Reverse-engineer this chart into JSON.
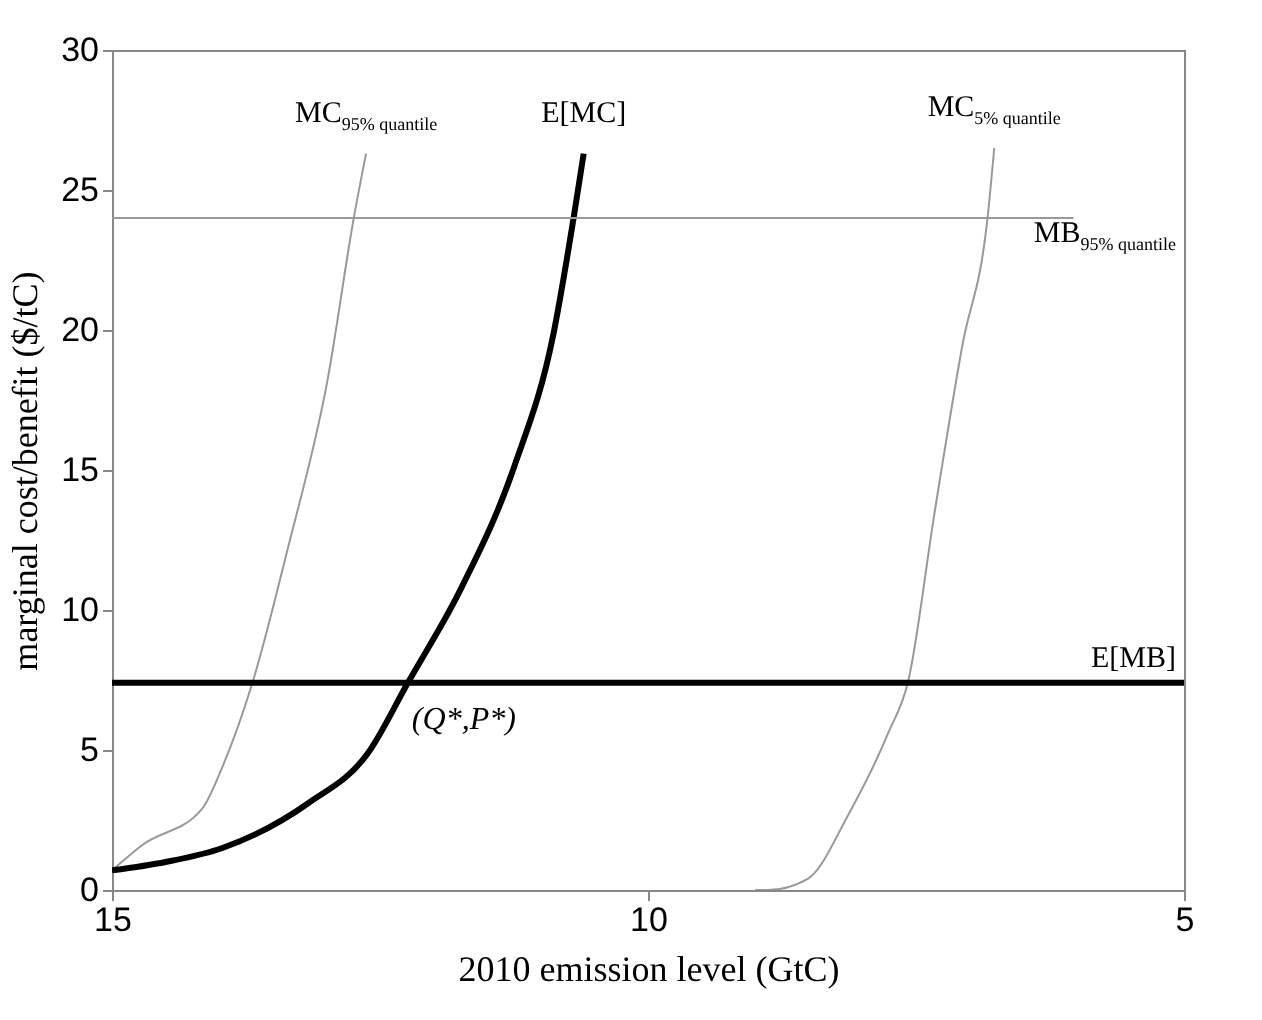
{
  "chart_data": {
    "type": "line",
    "xlabel": "2010 emission level (GtC)",
    "ylabel": "marginal cost/benefit ($/tC)",
    "xlim": [
      15,
      5
    ],
    "xticks": [
      15,
      10,
      5
    ],
    "ylim": [
      0,
      30
    ],
    "yticks": [
      0,
      5,
      10,
      15,
      20,
      25,
      30
    ],
    "grid": false,
    "series": [
      {
        "name": "MC$_{95% quantile}$",
        "color": "#999999",
        "x": [
          15,
          14.72,
          14.16,
          13.97,
          13.69,
          13.36,
          12.99,
          12.74,
          12.63
        ],
        "values": [
          0.7,
          1.6,
          2.9,
          4.4,
          7.4,
          12.2,
          18.2,
          24.1,
          26.3
        ]
      },
      {
        "name": "E[MC]",
        "color": "#000000",
        "x": [
          15,
          14.5,
          13.97,
          13.17,
          12.61,
          12.24,
          11.74,
          11.25,
          10.88,
          10.69,
          10.6
        ],
        "values": [
          0.7,
          1.0,
          1.5,
          3.1,
          4.9,
          7.4,
          10.8,
          15.1,
          19.9,
          24.1,
          26.3
        ]
      },
      {
        "name": "MC$_{5% quantile}$",
        "color": "#999999",
        "x": [
          9.0,
          8.88,
          8.51,
          8.13,
          7.76,
          7.57,
          7.33,
          7.07,
          6.83,
          6.77
        ],
        "values": [
          0,
          0,
          0.4,
          2.7,
          5.6,
          7.5,
          13.4,
          19.4,
          24.1,
          26.5
        ]
      },
      {
        "name": "MB$_{95% quantile}$",
        "color": "#999999",
        "x": [
          15,
          6.03
        ],
        "values": [
          24,
          24
        ]
      },
      {
        "name": "E[MB]",
        "color": "#000000",
        "x": [
          15,
          5
        ],
        "values": [
          7.4,
          7.4
        ]
      }
    ],
    "annotations": [
      {
        "text": "(Q*,P*)",
        "x": 12.24,
        "y": 7.4
      }
    ]
  }
}
